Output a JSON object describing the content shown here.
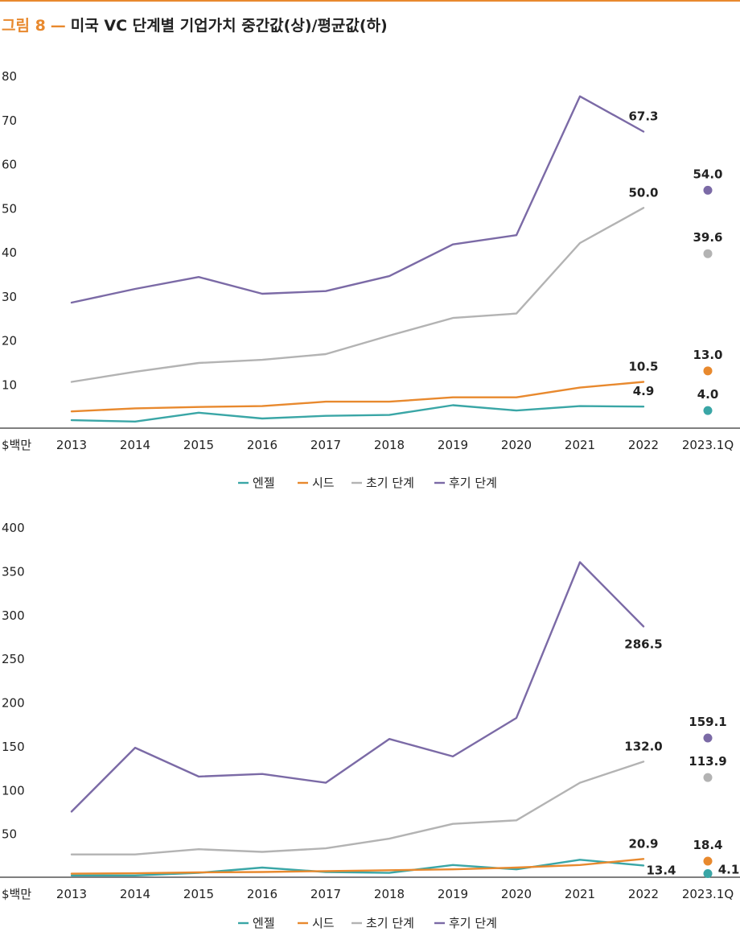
{
  "header": {
    "figure_label": "그림 8",
    "separator": "—",
    "title": "미국 VC 단계별 기업가치 중간값(상)/평균값(하)"
  },
  "colors": {
    "accent": "#e8892e",
    "angel": "#3aa6a6",
    "seed": "#e8892e",
    "early": "#b3b3b3",
    "late": "#7b6aa6"
  },
  "chart_data": [
    {
      "type": "line",
      "unit_label": "$백만",
      "categories": [
        "2013",
        "2014",
        "2015",
        "2016",
        "2017",
        "2018",
        "2019",
        "2020",
        "2021",
        "2022"
      ],
      "extra_category": "2023.1Q",
      "ylim": [
        0,
        80
      ],
      "yticks": [
        10,
        20,
        30,
        40,
        50,
        60,
        70,
        80
      ],
      "legend_position": "bottom-center",
      "series": [
        {
          "key": "angel",
          "name": "엔젤",
          "values": [
            1.8,
            1.5,
            3.5,
            2.2,
            2.8,
            3.0,
            5.2,
            4.0,
            5.0,
            4.9
          ],
          "q1_2023": 4.0,
          "label_2022": "4.9",
          "label_q1": "4.0"
        },
        {
          "key": "seed",
          "name": "시드",
          "values": [
            3.8,
            4.5,
            4.8,
            5.0,
            6.0,
            6.0,
            7.0,
            7.0,
            9.2,
            10.5
          ],
          "q1_2023": 13.0,
          "label_2022": "10.5",
          "label_q1": "13.0"
        },
        {
          "key": "early",
          "name": "초기 단계",
          "values": [
            10.5,
            12.8,
            14.8,
            15.5,
            16.8,
            21.0,
            25.0,
            26.0,
            42.0,
            50.0
          ],
          "q1_2023": 39.6,
          "label_2022": "50.0",
          "label_q1": "39.6"
        },
        {
          "key": "late",
          "name": "후기 단계",
          "values": [
            28.5,
            31.6,
            34.3,
            30.5,
            31.1,
            34.5,
            41.7,
            43.8,
            75.3,
            67.3
          ],
          "q1_2023": 54.0,
          "label_2022": "67.3",
          "label_q1": "54.0"
        }
      ]
    },
    {
      "type": "line",
      "unit_label": "$백만",
      "categories": [
        "2013",
        "2014",
        "2015",
        "2016",
        "2017",
        "2018",
        "2019",
        "2020",
        "2021",
        "2022"
      ],
      "extra_category": "2023.1Q",
      "ylim": [
        0,
        400
      ],
      "yticks": [
        50,
        100,
        150,
        200,
        250,
        300,
        350,
        400
      ],
      "legend_position": "bottom-center",
      "series": [
        {
          "key": "angel",
          "name": "엔젤",
          "values": [
            2,
            2,
            5,
            11,
            6,
            5,
            14,
            9,
            20,
            13.4
          ],
          "q1_2023": 4.1,
          "label_2022": "13.4",
          "label_q1": "4.1"
        },
        {
          "key": "seed",
          "name": "시드",
          "values": [
            4,
            4.5,
            5.5,
            6,
            7,
            8,
            9,
            11,
            14,
            20.9
          ],
          "q1_2023": 18.4,
          "label_2022": "20.9",
          "label_q1": "18.4"
        },
        {
          "key": "early",
          "name": "초기 단계",
          "values": [
            26,
            26,
            32,
            29,
            33,
            44,
            61,
            65,
            108,
            132.0
          ],
          "q1_2023": 113.9,
          "label_2022": "132.0",
          "label_q1": "113.9"
        },
        {
          "key": "late",
          "name": "후기 단계",
          "values": [
            75,
            148,
            115,
            118,
            108,
            158,
            138,
            182,
            360,
            286.5
          ],
          "q1_2023": 159.1,
          "label_2022": "286.5",
          "label_q1": "159.1"
        }
      ]
    }
  ]
}
